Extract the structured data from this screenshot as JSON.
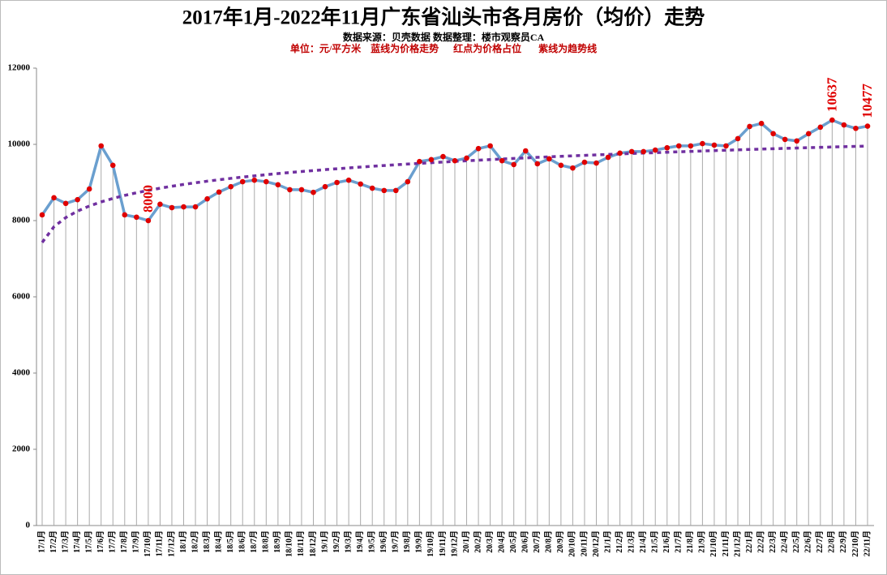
{
  "chart_data": {
    "type": "line",
    "title": "2017年1月-2022年11月广东省汕头市各月房价（均价）走势",
    "subtitle": "数据来源：贝壳数据 数据整理：楼市观察员CA",
    "note": "单位：元/平方米    蓝线为价格走势      红点为价格占位       紫线为趋势线",
    "categories": [
      "17/1月",
      "17/2月",
      "17/3月",
      "17/4月",
      "17/5月",
      "17/6月",
      "17/7月",
      "17/8月",
      "17/9月",
      "17/10月",
      "17/11月",
      "17/12月",
      "18/1月",
      "18/2月",
      "18/3月",
      "18/4月",
      "18/5月",
      "18/6月",
      "18/7月",
      "18/8月",
      "18/9月",
      "18/10月",
      "18/11月",
      "18/12月",
      "19/1月",
      "19/2月",
      "19/3月",
      "19/4月",
      "19/5月",
      "19/6月",
      "19/7月",
      "19/8月",
      "19/9月",
      "19/10月",
      "19/11月",
      "19/12月",
      "20/1月",
      "20/2月",
      "20/3月",
      "20/4月",
      "20/5月",
      "20/6月",
      "20/7月",
      "20/8月",
      "20/9月",
      "20/10月",
      "20/11月",
      "20/12月",
      "21/1月",
      "21/2月",
      "21/3月",
      "21/4月",
      "21/5月",
      "21/6月",
      "21/7月",
      "21/8月",
      "21/9月",
      "21/10月",
      "21/11月",
      "21/12月",
      "22/1月",
      "22/2月",
      "22/3月",
      "22/4月",
      "22/5月",
      "22/6月",
      "22/7月",
      "22/8月",
      "22/9月",
      "22/10月",
      "22/11月"
    ],
    "values": [
      8150,
      8600,
      8450,
      8550,
      8830,
      9960,
      9450,
      8150,
      8090,
      8000,
      8430,
      8340,
      8360,
      8360,
      8570,
      8750,
      8890,
      9020,
      9060,
      9020,
      8940,
      8810,
      8810,
      8740,
      8890,
      9000,
      9060,
      8960,
      8850,
      8790,
      8790,
      9020,
      9550,
      9600,
      9680,
      9570,
      9640,
      9890,
      9960,
      9570,
      9470,
      9830,
      9490,
      9620,
      9450,
      9380,
      9530,
      9510,
      9660,
      9770,
      9810,
      9810,
      9850,
      9910,
      9960,
      9960,
      10020,
      9980,
      9960,
      10150,
      10470,
      10550,
      10280,
      10130,
      10090,
      10280,
      10450,
      10637,
      10510,
      10420,
      10477
    ],
    "value_labels": [
      null,
      null,
      null,
      null,
      null,
      null,
      null,
      null,
      null,
      "8000",
      null,
      null,
      null,
      null,
      null,
      null,
      null,
      null,
      null,
      null,
      null,
      null,
      null,
      null,
      null,
      null,
      null,
      null,
      null,
      null,
      null,
      null,
      null,
      null,
      null,
      null,
      null,
      null,
      null,
      null,
      null,
      null,
      null,
      null,
      null,
      null,
      null,
      null,
      null,
      null,
      null,
      null,
      null,
      null,
      null,
      null,
      null,
      null,
      null,
      null,
      null,
      null,
      null,
      null,
      null,
      null,
      null,
      "10637",
      null,
      null,
      "10477"
    ],
    "color": "#6a9fcf",
    "marker_color": "#e00000",
    "trendline": "logarithmic",
    "trend_color": "#7030a0",
    "drop_lines": true,
    "ylim": [
      0,
      12000
    ],
    "yticks": [
      0,
      2000,
      4000,
      6000,
      8000,
      10000,
      12000
    ]
  }
}
